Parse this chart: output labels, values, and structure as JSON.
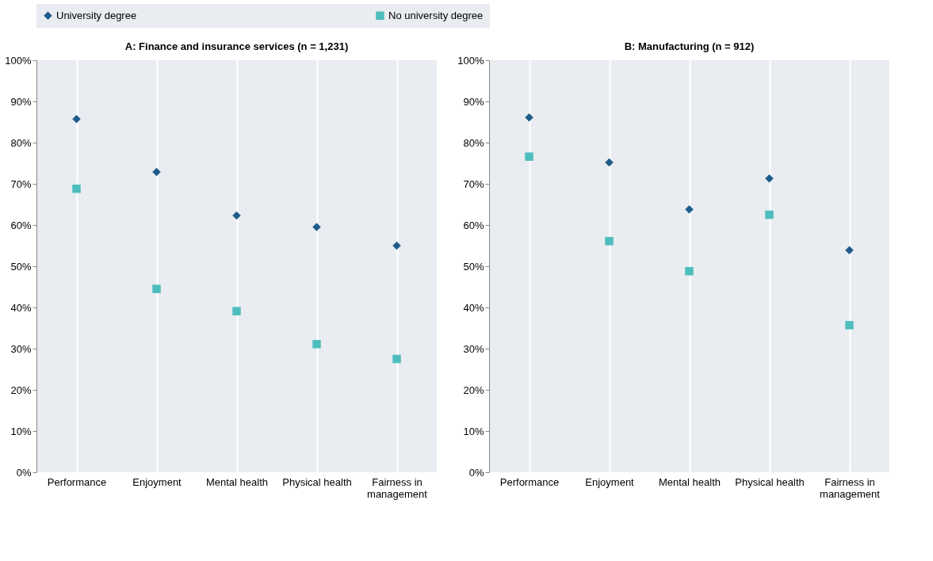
{
  "chart_data": [
    {
      "type": "scatter",
      "title": "A: Finance and insurance services (n = 1,231)",
      "categories": [
        "Performance",
        "Enjoyment",
        "Mental health",
        "Physical health",
        "Fairness in management"
      ],
      "series": [
        {
          "name": "University degree",
          "color": "#1f5c8b",
          "marker": "diamond",
          "values": [
            85.7,
            72.9,
            62.3,
            59.5,
            55.0
          ]
        },
        {
          "name": "No university degree",
          "color": "#4dbdbd",
          "marker": "square",
          "values": [
            68.8,
            44.5,
            39.1,
            31.1,
            27.5
          ]
        }
      ],
      "ylim": [
        0,
        100
      ],
      "yticks": [
        {
          "value": 0,
          "label": "0%"
        },
        {
          "value": 10,
          "label": "10%"
        },
        {
          "value": 20,
          "label": "20%"
        },
        {
          "value": 30,
          "label": "30%"
        },
        {
          "value": 40,
          "label": "40%"
        },
        {
          "value": 50,
          "label": "50%"
        },
        {
          "value": 60,
          "label": "60%"
        },
        {
          "value": 70,
          "label": "70%"
        },
        {
          "value": 80,
          "label": "80%"
        },
        {
          "value": 90,
          "label": "90%"
        },
        {
          "value": 100,
          "label": "100%"
        }
      ],
      "grid": "x",
      "legend": "top"
    },
    {
      "type": "scatter",
      "title": "B: Manufacturing (n = 912)",
      "categories": [
        "Performance",
        "Enjoyment",
        "Mental health",
        "Physical health",
        "Fairness in management"
      ],
      "series": [
        {
          "name": "University degree",
          "color": "#1f5c8b",
          "marker": "diamond",
          "values": [
            86.1,
            75.2,
            63.8,
            71.3,
            53.9
          ]
        },
        {
          "name": "No university degree",
          "color": "#4dbdbd",
          "marker": "square",
          "values": [
            76.6,
            56.1,
            48.8,
            62.5,
            35.7
          ]
        }
      ],
      "ylim": [
        0,
        100
      ],
      "yticks": [
        {
          "value": 0,
          "label": "0%"
        },
        {
          "value": 10,
          "label": "10%"
        },
        {
          "value": 20,
          "label": "20%"
        },
        {
          "value": 30,
          "label": "30%"
        },
        {
          "value": 40,
          "label": "40%"
        },
        {
          "value": 50,
          "label": "50%"
        },
        {
          "value": 60,
          "label": "60%"
        },
        {
          "value": 70,
          "label": "70%"
        },
        {
          "value": 80,
          "label": "80%"
        },
        {
          "value": 90,
          "label": "90%"
        },
        {
          "value": 100,
          "label": "100%"
        }
      ],
      "grid": "x",
      "legend": "top"
    }
  ]
}
